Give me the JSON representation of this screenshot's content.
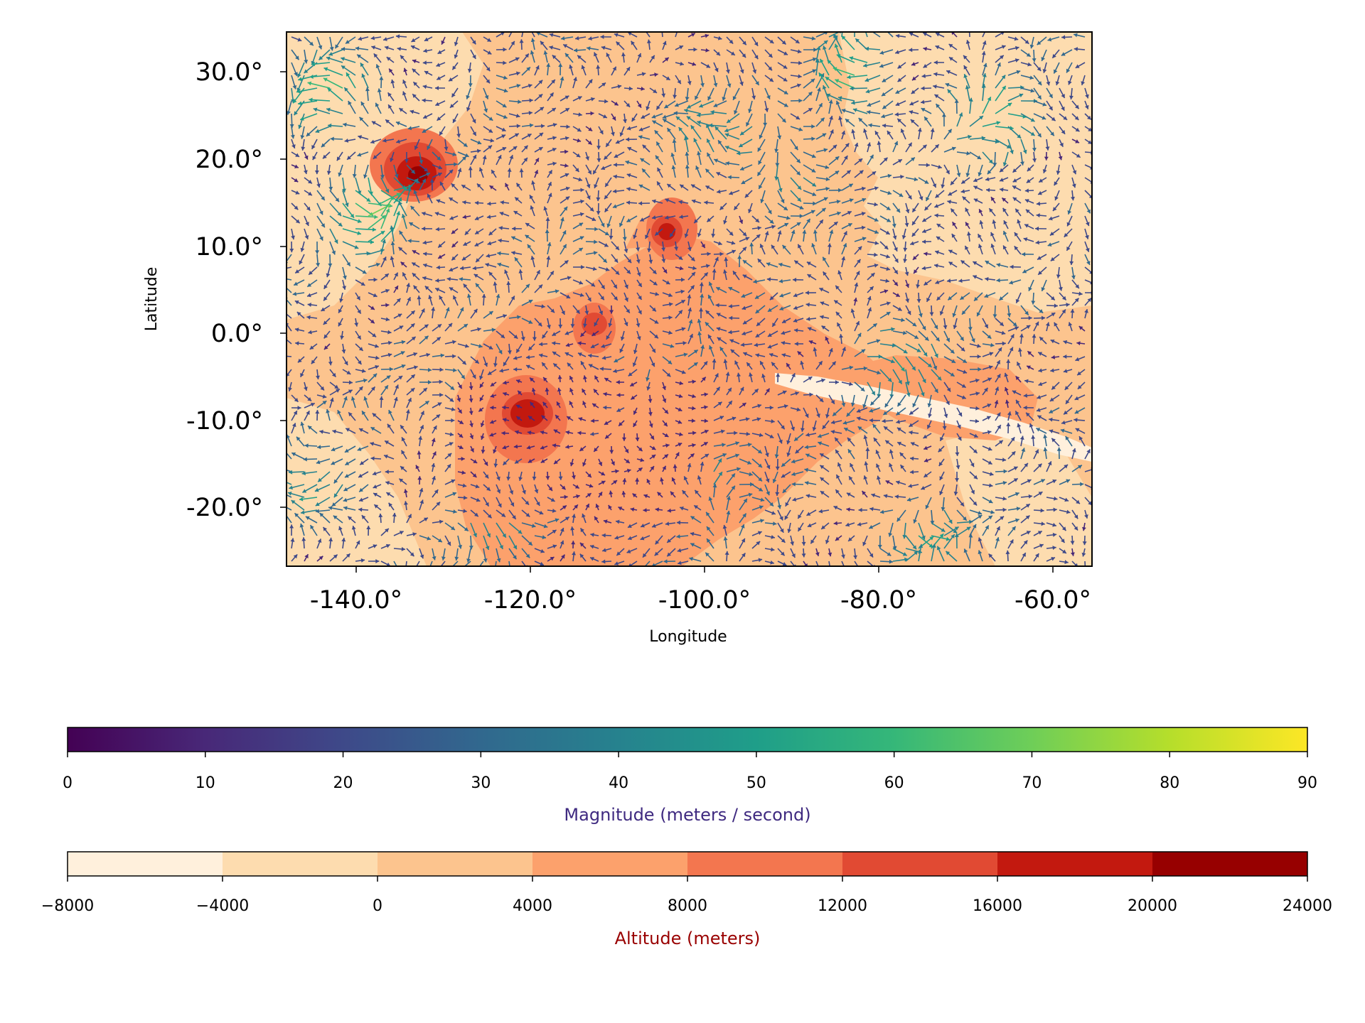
{
  "map": {
    "xlabel": "Longitude",
    "ylabel": "Latitude",
    "x_ticks": [
      "-140.0°",
      "-120.0°",
      "-100.0°",
      "-80.0°",
      "-60.0°"
    ],
    "y_ticks": [
      "30.0°",
      "20.0°",
      "10.0°",
      "0.0°",
      "-10.0°",
      "-20.0°"
    ],
    "lon_range": [
      -148.2,
      -55.6
    ],
    "lat_range": [
      -27.0,
      34.5
    ]
  },
  "chart_data": {
    "type": "heatmap",
    "description_of_layers": [
      "filled altitude contours",
      "wind vector quiver"
    ],
    "x": [
      -140.0,
      -120.0,
      -100.0,
      -80.0,
      -60.0
    ],
    "y": [
      30.0,
      20.0,
      10.0,
      0.0,
      -10.0,
      -20.0
    ],
    "features": [
      {
        "lon": -133.0,
        "lat": 18.0,
        "peak_altitude": 22000
      },
      {
        "lon": -120.5,
        "lat": -9.0,
        "peak_altitude": 20000
      },
      {
        "lon": -104.5,
        "lat": 11.5,
        "peak_altitude": 20000
      },
      {
        "lon": -112.5,
        "lat": 1.0,
        "peak_altitude": 16000
      }
    ],
    "colorbars": [
      {
        "label": "Magnitude (meters / second)",
        "ticks": [
          "0",
          "10",
          "20",
          "30",
          "40",
          "50",
          "60",
          "70",
          "80",
          "90"
        ],
        "range": [
          0,
          90
        ],
        "colormap": "viridis",
        "label_color": "#3f2a80"
      },
      {
        "label": "Altitude (meters)",
        "ticks": [
          "−8000",
          "−4000",
          "0",
          "4000",
          "8000",
          "12000",
          "16000",
          "20000",
          "24000"
        ],
        "range": [
          -8000,
          24000
        ],
        "levels": [
          -8000,
          -4000,
          0,
          4000,
          8000,
          12000,
          16000,
          20000,
          24000
        ],
        "colors": [
          "#fff0dc",
          "#fddcaf",
          "#fcc48e",
          "#fca16c",
          "#f3764f",
          "#e14a33",
          "#c3190f",
          "#970000"
        ],
        "label_color": "#990000"
      }
    ]
  },
  "colors": {
    "viridis": [
      "#440154",
      "#482878",
      "#3e4989",
      "#31688e",
      "#26828e",
      "#1f9e89",
      "#35b779",
      "#6ece58",
      "#b5de2b",
      "#fde725"
    ]
  }
}
